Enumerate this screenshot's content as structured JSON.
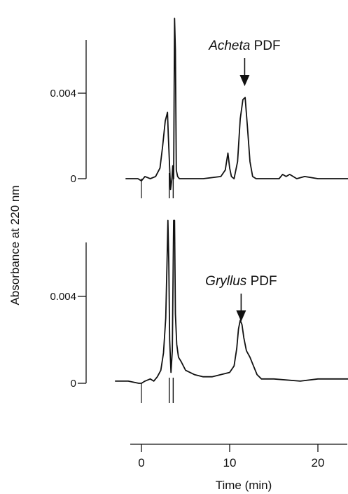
{
  "chart_data": {
    "type": "line",
    "ylabel": "Absorbance at 220 nm",
    "xlabel": "Time (min)",
    "x_ticks": [
      0,
      10,
      20
    ],
    "x_range": [
      -1.8,
      23.5
    ],
    "panels": [
      {
        "name": "top",
        "y_ticks": [
          {
            "value": 0,
            "label": "0"
          },
          {
            "value": 0.004,
            "label": "0.004"
          }
        ],
        "annotation": {
          "italic": "Acheta",
          "normal": " PDF",
          "x": 11.7
        },
        "series": [
          {
            "x": [
              -1.8,
              -0.4,
              0,
              0.4,
              1.0,
              1.6,
              2.1,
              2.4,
              2.7,
              2.95,
              3.05,
              3.2,
              3.3,
              3.45,
              3.55,
              3.65,
              3.75,
              3.85,
              3.95,
              4.1,
              4.3,
              5,
              7,
              9,
              9.5,
              9.8,
              10.0,
              10.2,
              10.5,
              10.9,
              11.2,
              11.5,
              11.75,
              12.0,
              12.3,
              12.6,
              13,
              14,
              15.6,
              16,
              16.4,
              16.8,
              17.2,
              17.6,
              18.5,
              20,
              23.5
            ],
            "y": [
              0,
              0,
              -0.0001,
              0.0001,
              0,
              0.0001,
              0.0005,
              0.0015,
              0.0027,
              0.0031,
              0.002,
              0.0005,
              -0.0005,
              0.0,
              0.0006,
              0.0,
              0.0075,
              0.006,
              0.0004,
              0.0001,
              0,
              0,
              0,
              0.0001,
              0.0004,
              0.0012,
              0.0005,
              0.0001,
              0,
              0.0008,
              0.0028,
              0.0037,
              0.0038,
              0.0025,
              0.0008,
              0.0001,
              0,
              0,
              0,
              0.0002,
              0.0001,
              0.0002,
              0.0001,
              0,
              0.0001,
              0,
              0
            ]
          }
        ]
      },
      {
        "name": "bottom",
        "y_ticks": [
          {
            "value": 0,
            "label": "0"
          },
          {
            "value": 0.004,
            "label": "0.004"
          }
        ],
        "annotation": {
          "italic": "Gryllus",
          "normal": " PDF",
          "x": 11.3
        },
        "series": [
          {
            "x": [
              -3,
              -1.5,
              -0.3,
              0,
              0.4,
              1.0,
              1.4,
              1.8,
              2.2,
              2.5,
              2.75,
              2.9,
              3.0,
              3.1,
              3.2,
              3.35,
              3.5,
              3.65,
              3.75,
              3.85,
              4.0,
              4.2,
              4.5,
              5,
              6,
              7,
              8,
              9,
              10,
              10.5,
              10.8,
              11.0,
              11.2,
              11.4,
              11.6,
              11.9,
              12.3,
              12.7,
              13.1,
              13.6,
              15,
              18,
              20,
              23.5
            ],
            "y": [
              0.0001,
              0.0001,
              0,
              0,
              0.0001,
              0.0002,
              0.0001,
              0.0003,
              0.0006,
              0.0014,
              0.003,
              0.0055,
              0.0075,
              0.0055,
              0.002,
              0.0005,
              0.0015,
              0.0075,
              0.0075,
              0.0032,
              0.0018,
              0.0012,
              0.001,
              0.0006,
              0.0004,
              0.0003,
              0.0003,
              0.0004,
              0.0005,
              0.0008,
              0.0016,
              0.0025,
              0.0029,
              0.0027,
              0.0021,
              0.0015,
              0.0012,
              0.0008,
              0.0004,
              0.0002,
              0.0002,
              0.0001,
              0.0002,
              0.0002
            ]
          }
        ]
      }
    ]
  }
}
